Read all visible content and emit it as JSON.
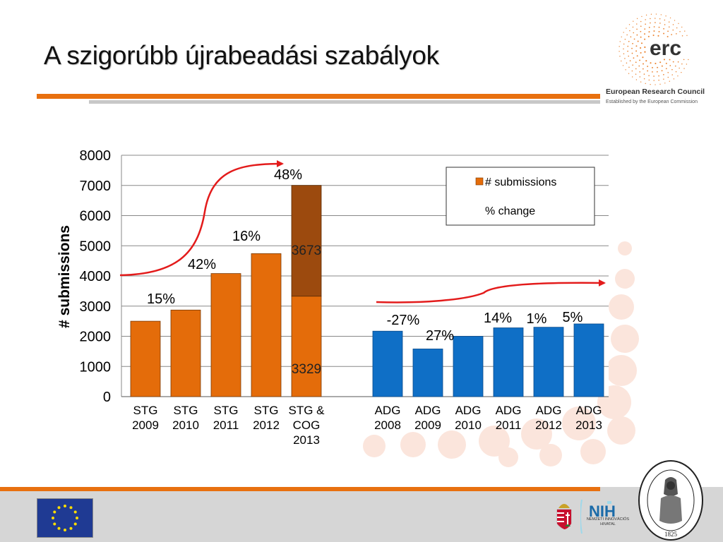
{
  "slide": {
    "title": "A szigorúbb újrabeadási szabályok",
    "erc_name": "European Research Council",
    "erc_subtitle": "Established by the European Commission",
    "erc_logo_text": "erc",
    "nih_text_1": "NEMZETI INNOVÁCIÓS",
    "nih_text_2": "HIVATAL",
    "mta_year": "1825"
  },
  "colors": {
    "accent_orange": "#e8700f",
    "stg_bar": "#e46c0a",
    "stg_top_segment": "#9c4a0e",
    "adg_bar": "#0f6fc6",
    "arrow": "#e31b1b"
  },
  "chart_data": {
    "type": "bar",
    "ylabel": "# submissions",
    "xlabel": "",
    "ylim": [
      0,
      8000
    ],
    "yticks": [
      "0",
      "1000",
      "2000",
      "3000",
      "4000",
      "5000",
      "6000",
      "7000",
      "8000"
    ],
    "grid": true,
    "legend": {
      "position": "top-right",
      "entries": [
        "# submissions",
        "% change"
      ]
    },
    "groups": [
      {
        "name": "STG",
        "categories": [
          [
            "STG",
            "2009"
          ],
          [
            "STG",
            "2010"
          ],
          [
            "STG",
            "2011"
          ],
          [
            "STG",
            "2012"
          ],
          [
            "STG &",
            "COG",
            "2013"
          ]
        ],
        "values": [
          2500,
          2870,
          4080,
          4740,
          7002
        ],
        "stacked_last": {
          "bottom": 3329,
          "top": 3673,
          "bottom_label": "3329",
          "top_label": "3673"
        },
        "pct_labels": [
          "15%",
          "42%",
          "16%",
          "48%"
        ]
      },
      {
        "name": "ADG",
        "categories": [
          [
            "ADG",
            "2008"
          ],
          [
            "ADG",
            "2009"
          ],
          [
            "ADG",
            "2010"
          ],
          [
            "ADG",
            "2011"
          ],
          [
            "ADG",
            "2012"
          ],
          [
            "ADG",
            "2013"
          ]
        ],
        "values": [
          2170,
          1580,
          2000,
          2280,
          2300,
          2410
        ],
        "pct_labels": [
          "-27%",
          "27%",
          "14%",
          "1%",
          "5%"
        ]
      }
    ]
  }
}
